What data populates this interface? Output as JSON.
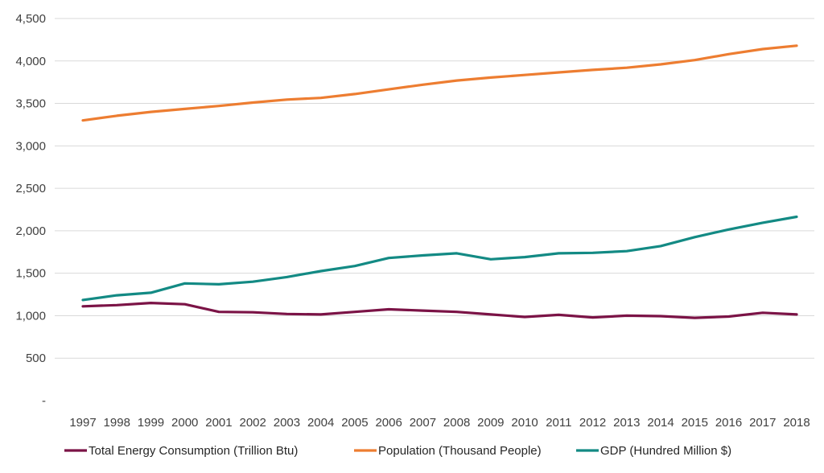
{
  "chart_data": {
    "type": "line",
    "title": "",
    "xlabel": "",
    "ylabel": "",
    "ylim": [
      0,
      4500
    ],
    "y_ticks": [
      "-",
      "500",
      "1,000",
      "1,500",
      "2,000",
      "2,500",
      "3,000",
      "3,500",
      "4,000",
      "4,500"
    ],
    "grid": "horizontal",
    "legend_position": "bottom",
    "categories": [
      "1997",
      "1998",
      "1999",
      "2000",
      "2001",
      "2002",
      "2003",
      "2004",
      "2005",
      "2006",
      "2007",
      "2008",
      "2009",
      "2010",
      "2011",
      "2012",
      "2013",
      "2014",
      "2015",
      "2016",
      "2017",
      "2018"
    ],
    "series": [
      {
        "name": "Total Energy Consumption (Trillion Btu)",
        "color": "#7b1346",
        "values": [
          1110,
          1125,
          1150,
          1135,
          1045,
          1040,
          1020,
          1015,
          1045,
          1075,
          1060,
          1045,
          1015,
          985,
          1010,
          980,
          1000,
          995,
          975,
          990,
          1035,
          1015
        ]
      },
      {
        "name": "Population (Thousand People)",
        "color": "#ed7d31",
        "values": [
          3300,
          3355,
          3400,
          3435,
          3470,
          3510,
          3545,
          3565,
          3610,
          3665,
          3720,
          3770,
          3805,
          3835,
          3865,
          3895,
          3920,
          3960,
          4010,
          4080,
          4140,
          4180
        ]
      },
      {
        "name": "GDP (Hundred Million $)",
        "color": "#138a84",
        "values": [
          1185,
          1240,
          1270,
          1380,
          1370,
          1400,
          1455,
          1525,
          1585,
          1680,
          1710,
          1735,
          1665,
          1690,
          1735,
          1740,
          1760,
          1820,
          1925,
          2015,
          2095,
          2165
        ]
      }
    ]
  }
}
